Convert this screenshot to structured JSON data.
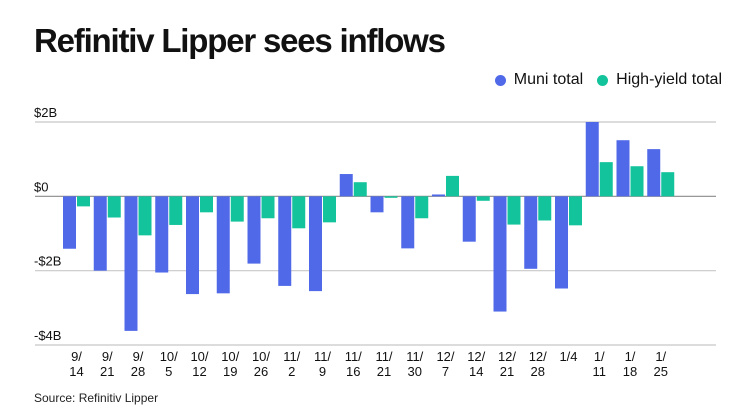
{
  "chart_data": {
    "type": "bar",
    "title": "Refinitiv Lipper sees inflows",
    "source": "Source: Refinitiv Lipper",
    "xlabel": "",
    "ylabel": "",
    "ylim": [
      -4,
      2
    ],
    "yticks": [
      2,
      0,
      -2,
      -4
    ],
    "ytick_labels": [
      "$2B",
      "$0",
      "-$2B",
      "-$4B"
    ],
    "grid": true,
    "legend_position": "top-right",
    "categories": [
      "9/14",
      "9/21",
      "9/28",
      "10/5",
      "10/12",
      "10/19",
      "10/26",
      "11/2",
      "11/9",
      "11/16",
      "11/21",
      "11/30",
      "12/7",
      "12/14",
      "12/21",
      "12/28",
      "1/4",
      "1/11",
      "1/18",
      "1/25"
    ],
    "category_labels": [
      [
        "9/",
        "14"
      ],
      [
        "9/",
        "21"
      ],
      [
        "9/",
        "28"
      ],
      [
        "10/",
        "5"
      ],
      [
        "10/",
        "12"
      ],
      [
        "10/",
        "19"
      ],
      [
        "10/",
        "26"
      ],
      [
        "11/",
        "2"
      ],
      [
        "11/",
        "9"
      ],
      [
        "11/",
        "16"
      ],
      [
        "11/",
        "21"
      ],
      [
        "11/",
        "30"
      ],
      [
        "12/",
        "7"
      ],
      [
        "12/",
        "14"
      ],
      [
        "12/",
        "21"
      ],
      [
        "12/",
        "28"
      ],
      [
        "1/4",
        ""
      ],
      [
        "1/",
        "11"
      ],
      [
        "1/",
        "18"
      ],
      [
        "1/",
        "25"
      ]
    ],
    "series": [
      {
        "name": "Muni total",
        "color": "#5069e8",
        "values": [
          -1.41,
          -2.0,
          -3.62,
          -2.05,
          -2.63,
          -2.61,
          -1.81,
          -2.41,
          -2.55,
          0.6,
          -0.43,
          -1.4,
          0.05,
          -1.22,
          -3.1,
          -1.95,
          -2.48,
          2.0,
          1.51,
          1.27
        ]
      },
      {
        "name": "High-yield total",
        "color": "#13c39b",
        "values": [
          -0.27,
          -0.57,
          -1.05,
          -0.77,
          -0.43,
          -0.68,
          -0.59,
          -0.86,
          -0.7,
          0.38,
          -0.04,
          -0.59,
          0.55,
          -0.12,
          -0.76,
          -0.65,
          -0.78,
          0.92,
          0.81,
          0.65
        ]
      }
    ],
    "units": "USD billions"
  }
}
